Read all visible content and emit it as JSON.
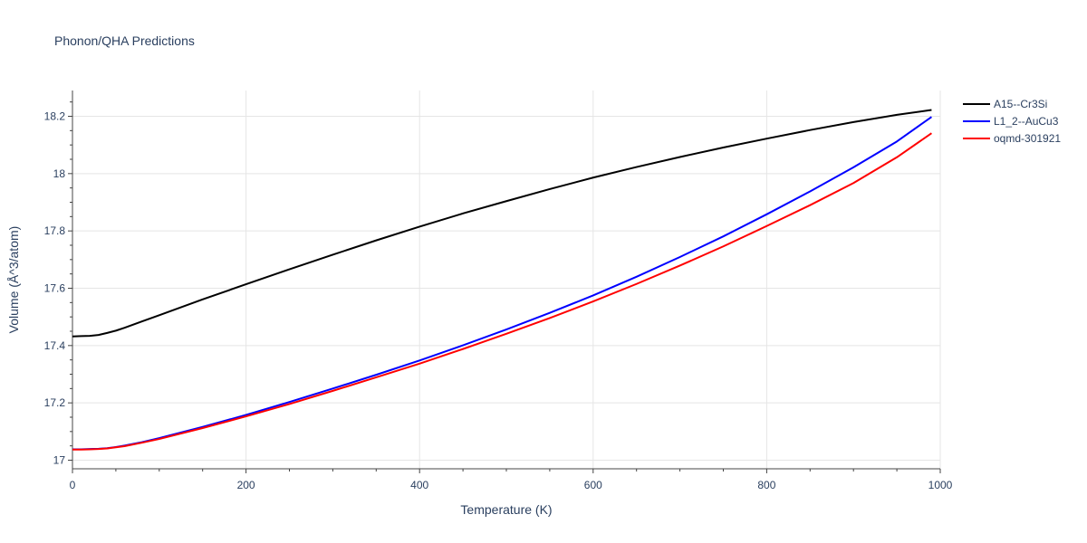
{
  "chart_data": {
    "type": "line",
    "title": "Phonon/QHA Predictions",
    "xlabel": "Temperature (K)",
    "ylabel": "Volume (Å^3/atom)",
    "xlim": [
      0,
      1000
    ],
    "ylim": [
      16.97,
      18.29
    ],
    "xticks": [
      0,
      200,
      400,
      600,
      800,
      1000
    ],
    "xtick_labels": [
      "0",
      "200",
      "400",
      "600",
      "800",
      "1000"
    ],
    "yticks": [
      17,
      17.2,
      17.4,
      17.6,
      17.8,
      18,
      18.2
    ],
    "ytick_labels": [
      "17",
      "17.2",
      "17.4",
      "17.6",
      "17.8",
      "18",
      "18.2"
    ],
    "grid": true,
    "legend_position": "top-right",
    "series": [
      {
        "name": "A15--Cr3Si",
        "color": "#000000",
        "x": [
          0,
          10,
          20,
          30,
          40,
          50,
          60,
          80,
          100,
          150,
          200,
          250,
          300,
          350,
          400,
          450,
          500,
          550,
          600,
          650,
          700,
          750,
          800,
          850,
          900,
          950,
          990
        ],
        "y": [
          17.432,
          17.433,
          17.434,
          17.437,
          17.444,
          17.452,
          17.462,
          17.484,
          17.506,
          17.561,
          17.614,
          17.666,
          17.717,
          17.767,
          17.815,
          17.861,
          17.904,
          17.946,
          17.986,
          18.023,
          18.058,
          18.091,
          18.122,
          18.152,
          18.18,
          18.205,
          18.222
        ]
      },
      {
        "name": "L1_2--AuCu3",
        "color": "#0000ff",
        "x": [
          0,
          10,
          20,
          30,
          40,
          50,
          60,
          80,
          100,
          150,
          200,
          250,
          300,
          350,
          400,
          450,
          500,
          550,
          600,
          650,
          700,
          750,
          800,
          850,
          900,
          950,
          990
        ],
        "y": [
          17.038,
          17.038,
          17.039,
          17.04,
          17.042,
          17.046,
          17.051,
          17.063,
          17.077,
          17.116,
          17.158,
          17.203,
          17.25,
          17.298,
          17.348,
          17.401,
          17.456,
          17.514,
          17.575,
          17.64,
          17.709,
          17.781,
          17.858,
          17.938,
          18.022,
          18.112,
          18.198
        ]
      },
      {
        "name": "oqmd-301921",
        "color": "#ff0000",
        "x": [
          0,
          10,
          20,
          30,
          40,
          50,
          60,
          80,
          100,
          150,
          200,
          250,
          300,
          350,
          400,
          450,
          500,
          550,
          600,
          650,
          700,
          750,
          800,
          850,
          900,
          950,
          990
        ],
        "y": [
          17.037,
          17.037,
          17.038,
          17.039,
          17.041,
          17.045,
          17.049,
          17.061,
          17.074,
          17.112,
          17.153,
          17.196,
          17.242,
          17.289,
          17.337,
          17.388,
          17.441,
          17.496,
          17.554,
          17.615,
          17.679,
          17.746,
          17.817,
          17.89,
          17.967,
          18.057,
          18.141
        ]
      }
    ]
  }
}
